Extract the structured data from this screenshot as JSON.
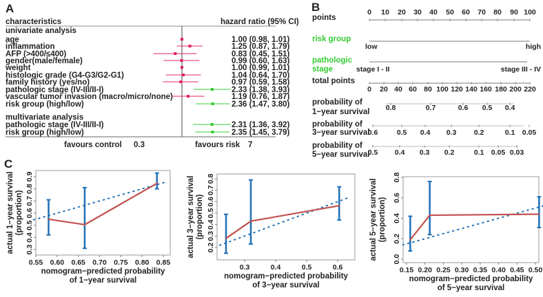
{
  "panels": {
    "a": "A",
    "b": "B",
    "c": "C"
  },
  "chart_data": [
    {
      "type": "forest",
      "scale": "log",
      "header": {
        "left": "characteristics",
        "right": "hazard ratio (95% CI)"
      },
      "sections": [
        {
          "title": "univariate analysis",
          "rows": [
            {
              "label": "age",
              "hr": 1.0,
              "lo": 0.98,
              "hi": 1.01,
              "text": "1.00 (0.98, 1.01)",
              "color": "#e0245e"
            },
            {
              "label": "inflammation",
              "hr": 1.25,
              "lo": 0.87,
              "hi": 1.79,
              "text": "1.25 (0.87, 1.79)",
              "color": "#e0245e"
            },
            {
              "label": "AFP (>400/≤400)",
              "hr": 0.83,
              "lo": 0.45,
              "hi": 1.51,
              "text": "0.83 (0.45, 1.51)",
              "color": "#e0245e"
            },
            {
              "label": "gender(male/female)",
              "hr": 0.99,
              "lo": 0.6,
              "hi": 1.63,
              "text": "0.99 (0.60, 1.63)",
              "color": "#e0245e"
            },
            {
              "label": "weight",
              "hr": 1.0,
              "lo": 0.99,
              "hi": 1.01,
              "text": "1.00 (0.99, 1.01)",
              "color": "#e0245e"
            },
            {
              "label": "histologic grade (G4-G3/G2-G1)",
              "hr": 1.04,
              "lo": 0.64,
              "hi": 1.7,
              "text": "1.04 (0.64, 1.70)",
              "color": "#e0245e"
            },
            {
              "label": "family history (yes/no)",
              "hr": 0.97,
              "lo": 0.59,
              "hi": 1.58,
              "text": "0.97 (0.59, 1.58)",
              "color": "#e0245e"
            },
            {
              "label": "pathologic stage (IV-III/II-I)",
              "hr": 2.33,
              "lo": 1.38,
              "hi": 3.93,
              "text": "2.33 (1.38, 3.93)",
              "color": "#33cc33"
            },
            {
              "label": "vascular tumor invasion (macro/micro/none)",
              "hr": 1.19,
              "lo": 0.76,
              "hi": 1.87,
              "text": "1.19 (0.76, 1.87)",
              "color": "#e0245e"
            },
            {
              "label": "risk group (high/low)",
              "hr": 2.36,
              "lo": 1.47,
              "hi": 3.8,
              "text": "2.36 (1.47, 3.80)",
              "color": "#33cc33"
            }
          ]
        },
        {
          "title": "multivariate analysis",
          "rows": [
            {
              "label": "pathologic stage (IV-III/II-I)",
              "hr": 2.31,
              "lo": 1.36,
              "hi": 3.92,
              "text": "2.31 (1.36, 3.92)",
              "color": "#33cc33"
            },
            {
              "label": "risk group (high/low)",
              "hr": 2.35,
              "lo": 1.45,
              "hi": 3.79,
              "text": "2.35 (1.45, 3.79)",
              "color": "#33cc33"
            }
          ]
        }
      ],
      "footer": {
        "left": "favours control",
        "low_tick": "0.3",
        "right": "favours risk",
        "high_tick": "7"
      }
    },
    {
      "type": "nomogram",
      "scales": [
        {
          "label": "points",
          "ticks": [
            "0",
            "10",
            "20",
            "30",
            "40",
            "50",
            "60",
            "70",
            "80",
            "90",
            "100"
          ]
        },
        {
          "label": "risk group",
          "label_color": "#33cc33",
          "ticks": [
            "low",
            "high"
          ]
        },
        {
          "label": "pathologic stage",
          "label_lines": [
            "pathologic",
            "stage"
          ],
          "label_color": "#33cc33",
          "ticks": [
            "stage I - II",
            "stage III - IV"
          ]
        },
        {
          "label": "total points",
          "ticks": [
            "0",
            "20",
            "40",
            "60",
            "80",
            "100",
            "120",
            "140",
            "160",
            "180",
            "200",
            "220"
          ]
        },
        {
          "label_lines": [
            "probability of",
            "1−year survival"
          ],
          "ticks": [
            "0.8",
            "0.7",
            "0.6",
            "0.5",
            "0.4"
          ]
        },
        {
          "label_lines": [
            "probability of",
            "3−year survival"
          ],
          "ticks": [
            "0.6",
            "0.5",
            "0.4",
            "0.3",
            "0.2",
            "0.1",
            "0.05"
          ]
        },
        {
          "label_lines": [
            "probability of",
            "5−year survival"
          ],
          "ticks": [
            "0.5",
            "0.4",
            "0.3",
            "0.2",
            "0.1",
            "0.05",
            "0.03"
          ]
        }
      ]
    },
    {
      "type": "line",
      "ylabel_lines": [
        "actual 1−year survival",
        "(proportion)"
      ],
      "xlabel_lines": [
        "nomogram−predicted probability",
        "of 1−year survival"
      ],
      "xlim": [
        0.545,
        0.86
      ],
      "ylim": [
        0.27,
        0.96
      ],
      "xticks": [
        "0.55",
        "0.60",
        "0.65",
        "0.70",
        "0.75",
        "0.80",
        "0.85"
      ],
      "yticks": [
        "0.3",
        "0.4",
        "0.5",
        "0.6",
        "0.7",
        "0.8",
        "0.9"
      ],
      "points": [
        {
          "x": 0.58,
          "y": 0.55,
          "lo": 0.42,
          "hi": 0.71
        },
        {
          "x": 0.665,
          "y": 0.505,
          "lo": 0.31,
          "hi": 0.81
        },
        {
          "x": 0.835,
          "y": 0.845,
          "lo": 0.8,
          "hi": 0.93
        }
      ],
      "reference": "ideal diagonal (dotted)",
      "colors": {
        "line": "#c0504d",
        "errorbar": "#1f6fb4",
        "reference": "#1f6fb4"
      }
    },
    {
      "type": "line",
      "ylabel_lines": [
        "actual 3−year survival",
        "(proportion)"
      ],
      "xlabel_lines": [
        "nomogram−predicted probability",
        "of 3−year survival"
      ],
      "xlim": [
        0.22,
        0.64
      ],
      "ylim": [
        0.1,
        0.82
      ],
      "xticks": [
        "0.3",
        "0.4",
        "0.5",
        "0.6"
      ],
      "yticks": [
        "0.2",
        "0.3",
        "0.4",
        "0.5",
        "0.6",
        "0.7",
        "0.8"
      ],
      "points": [
        {
          "x": 0.24,
          "y": 0.28,
          "lo": 0.15,
          "hi": 0.49
        },
        {
          "x": 0.32,
          "y": 0.43,
          "lo": 0.23,
          "hi": 0.79
        },
        {
          "x": 0.605,
          "y": 0.565,
          "lo": 0.44,
          "hi": 0.73
        }
      ],
      "reference": "ideal diagonal (dotted)",
      "colors": {
        "line": "#c0504d",
        "errorbar": "#1f6fb4",
        "reference": "#1f6fb4"
      }
    },
    {
      "type": "line",
      "ylabel_lines": [
        "actual 5−year survival",
        "(proportion)"
      ],
      "xlabel_lines": [
        "nomogram−predicted probability",
        "of 5−year survival"
      ],
      "xlim": [
        0.14,
        0.52
      ],
      "ylim": [
        -0.03,
        0.82
      ],
      "xticks": [
        "0.15",
        "0.20",
        "0.25",
        "0.30",
        "0.35",
        "0.40",
        "0.45",
        "0.50"
      ],
      "yticks": [
        "0.0",
        "0.2",
        "0.4",
        "0.6",
        "0.8"
      ],
      "points": [
        {
          "x": 0.16,
          "y": 0.19,
          "lo": 0.08,
          "hi": 0.42
        },
        {
          "x": 0.213,
          "y": 0.43,
          "lo": 0.24,
          "hi": 0.76
        },
        {
          "x": 0.51,
          "y": 0.44,
          "lo": 0.31,
          "hi": 0.61
        }
      ],
      "reference": "ideal diagonal (dotted)",
      "colors": {
        "line": "#c0504d",
        "errorbar": "#1f6fb4",
        "reference": "#1f6fb4"
      }
    }
  ]
}
